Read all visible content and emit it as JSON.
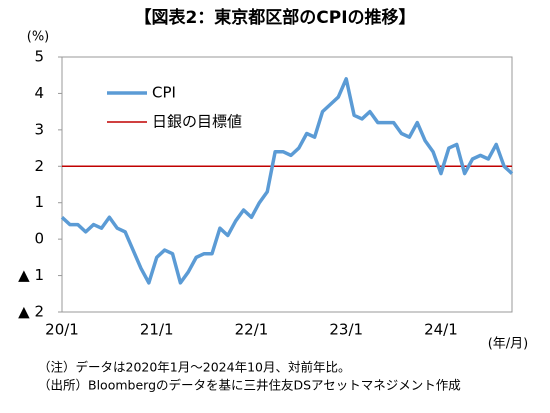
{
  "chart_data": {
    "type": "line",
    "title": "【図表2：東京都区部のCPIの推移】",
    "y_axis_label": "(%)",
    "x_axis_label": "(年/月)",
    "categories": [
      "20/1",
      null,
      null,
      null,
      null,
      null,
      null,
      null,
      null,
      null,
      null,
      null,
      "21/1",
      null,
      null,
      null,
      null,
      null,
      null,
      null,
      null,
      null,
      null,
      null,
      "22/1",
      null,
      null,
      null,
      null,
      null,
      null,
      null,
      null,
      null,
      null,
      null,
      "23/1",
      null,
      null,
      null,
      null,
      null,
      null,
      null,
      null,
      null,
      null,
      null,
      "24/1",
      null,
      null,
      null,
      null,
      null,
      null,
      null,
      null,
      null
    ],
    "series": [
      {
        "name": "CPI",
        "color": "#5b9bd5",
        "values": [
          0.6,
          0.4,
          0.4,
          0.2,
          0.4,
          0.3,
          0.6,
          0.3,
          0.2,
          -0.3,
          -0.8,
          -1.2,
          -0.5,
          -0.3,
          -0.4,
          -1.2,
          -0.9,
          -0.5,
          -0.4,
          -0.4,
          0.3,
          0.1,
          0.5,
          0.8,
          0.6,
          1.0,
          1.3,
          2.4,
          2.4,
          2.3,
          2.5,
          2.9,
          2.8,
          3.5,
          3.7,
          3.9,
          4.4,
          3.4,
          3.3,
          3.5,
          3.2,
          3.2,
          3.2,
          2.9,
          2.8,
          3.2,
          2.7,
          2.4,
          1.8,
          2.5,
          2.6,
          1.8,
          2.2,
          2.3,
          2.2,
          2.6,
          2.0,
          1.8
        ]
      }
    ],
    "reference_line": {
      "name": "日銀の目標値",
      "value": 2,
      "color": "#c00000"
    },
    "ylim": [
      -2,
      5
    ],
    "yticks": [
      {
        "value": -2,
        "label": "▲ 2"
      },
      {
        "value": -1,
        "label": "▲ 1"
      },
      0,
      1,
      2,
      3,
      4,
      5
    ],
    "grid": false,
    "legend": "upper-left",
    "notes": [
      "（注）データは2020年1月～2024年10月、対前年比。",
      "（出所）Bloombergのデータを基に三井住友DSアセットマネジメント作成"
    ]
  }
}
